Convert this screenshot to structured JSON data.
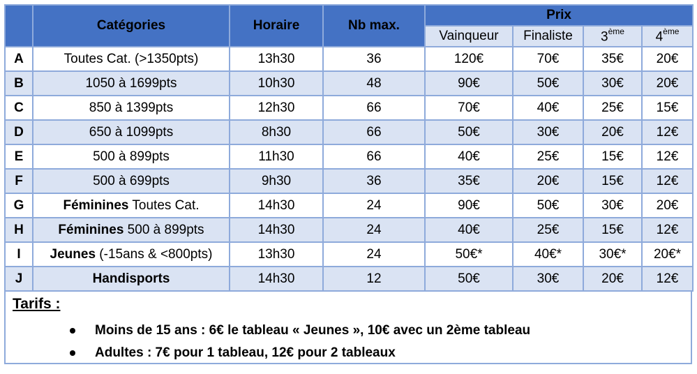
{
  "header": {
    "categories": "Catégories",
    "horaire": "Horaire",
    "nbmax": "Nb max.",
    "prix": "Prix",
    "vainqueur": "Vainqueur",
    "finaliste": "Finaliste",
    "third_num": "3",
    "third_sup": "ème",
    "fourth_num": "4",
    "fourth_sup": "ème"
  },
  "rows": [
    {
      "letter": "A",
      "cat_bold": "",
      "cat": "Toutes Cat. (>1350pts)",
      "horaire": "13h30",
      "nbmax": "36",
      "v": "120€",
      "f": "70€",
      "p3": "35€",
      "p4": "20€"
    },
    {
      "letter": "B",
      "cat_bold": "",
      "cat": "1050 à 1699pts",
      "horaire": "10h30",
      "nbmax": "48",
      "v": "90€",
      "f": "50€",
      "p3": "30€",
      "p4": "20€"
    },
    {
      "letter": "C",
      "cat_bold": "",
      "cat": "850 à 1399pts",
      "horaire": "12h30",
      "nbmax": "66",
      "v": "70€",
      "f": "40€",
      "p3": "25€",
      "p4": "15€"
    },
    {
      "letter": "D",
      "cat_bold": "",
      "cat": "650 à 1099pts",
      "horaire": "8h30",
      "nbmax": "66",
      "v": "50€",
      "f": "30€",
      "p3": "20€",
      "p4": "12€"
    },
    {
      "letter": "E",
      "cat_bold": "",
      "cat": "500 à 899pts",
      "horaire": "11h30",
      "nbmax": "66",
      "v": "40€",
      "f": "25€",
      "p3": "15€",
      "p4": "12€"
    },
    {
      "letter": "F",
      "cat_bold": "",
      "cat": "500 à 699pts",
      "horaire": "9h30",
      "nbmax": "36",
      "v": "35€",
      "f": "20€",
      "p3": "15€",
      "p4": "12€"
    },
    {
      "letter": "G",
      "cat_bold": "Féminines",
      "cat": " Toutes Cat.",
      "horaire": "14h30",
      "nbmax": "24",
      "v": "90€",
      "f": "50€",
      "p3": "30€",
      "p4": "20€"
    },
    {
      "letter": "H",
      "cat_bold": "Féminines",
      "cat": " 500 à 899pts",
      "horaire": "14h30",
      "nbmax": "24",
      "v": "40€",
      "f": "25€",
      "p3": "15€",
      "p4": "12€"
    },
    {
      "letter": "I",
      "cat_bold": "Jeunes",
      "cat": " (-15ans & <800pts)",
      "horaire": "13h30",
      "nbmax": "24",
      "v": "50€*",
      "f": "40€*",
      "p3": "30€*",
      "p4": "20€*"
    },
    {
      "letter": "J",
      "cat_bold": "Handisports",
      "cat": "",
      "horaire": "14h30",
      "nbmax": "12",
      "v": "50€",
      "f": "30€",
      "p3": "20€",
      "p4": "12€"
    }
  ],
  "tarifs": {
    "title": "Tarifs :",
    "items": [
      "Moins de 15 ans : 6€ le tableau « Jeunes », 10€ avec un 2ème tableau",
      "Adultes : 7€ pour 1 tableau, 12€ pour 2 tableaux"
    ]
  }
}
